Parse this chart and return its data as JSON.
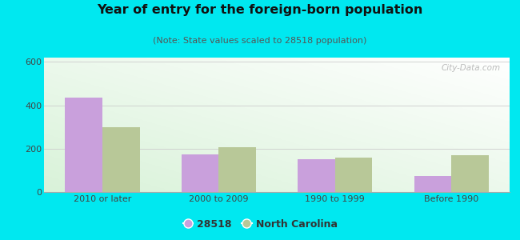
{
  "title": "Year of entry for the foreign-born population",
  "subtitle": "(Note: State values scaled to 28518 population)",
  "categories": [
    "2010 or later",
    "2000 to 2009",
    "1990 to 1999",
    "Before 1990"
  ],
  "values_28518": [
    437,
    175,
    152,
    75
  ],
  "values_nc": [
    298,
    208,
    160,
    170
  ],
  "bar_color_28518": "#c9a0dc",
  "bar_color_nc": "#b8c898",
  "background_outer": "#00e8f0",
  "background_inner_top": "#f5fff8",
  "background_inner_bottom": "#ddf0dc",
  "ylim": [
    0,
    620
  ],
  "yticks": [
    0,
    200,
    400,
    600
  ],
  "legend_label_1": "28518",
  "legend_label_2": "North Carolina",
  "bar_width": 0.32,
  "title_fontsize": 11.5,
  "subtitle_fontsize": 8,
  "tick_fontsize": 8,
  "legend_fontsize": 9,
  "watermark": "City-Data.com"
}
